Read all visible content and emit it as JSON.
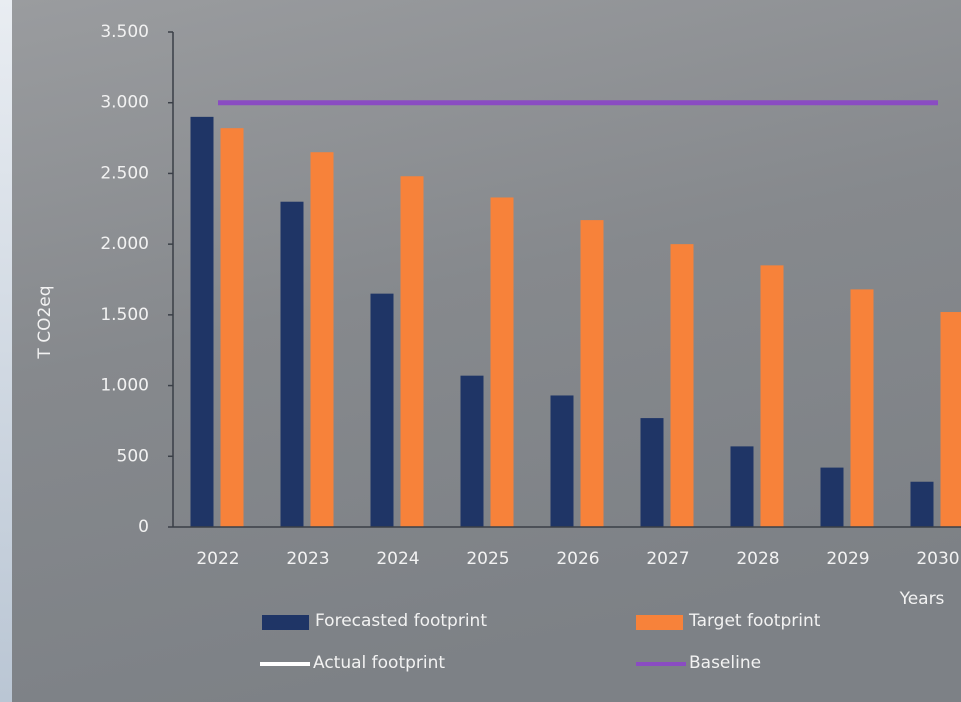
{
  "chart_data": {
    "type": "bar",
    "categories": [
      "2022",
      "2023",
      "2024",
      "2025",
      "2026",
      "2027",
      "2028",
      "2029",
      "2030"
    ],
    "y_label": "T  CO2eq",
    "x_label": "Years",
    "series": [
      {
        "name": "Forecasted footprint",
        "color": "#1f3566",
        "values": [
          2900,
          2300,
          1650,
          1070,
          930,
          770,
          570,
          420,
          320
        ]
      },
      {
        "name": "Target footprint",
        "color": "#f7823a",
        "values": [
          2820,
          2650,
          2480,
          2330,
          2170,
          2000,
          1850,
          1680,
          1520
        ]
      },
      {
        "name": "Actual footprint",
        "type": "line",
        "color": "#ffffff",
        "values": [
          null,
          null,
          null,
          null,
          null,
          null,
          null,
          null,
          null
        ]
      },
      {
        "name": "Baseline",
        "type": "line",
        "color": "#8a4cc2",
        "values": [
          3000,
          3000,
          3000,
          3000,
          3000,
          3000,
          3000,
          3000,
          3000
        ]
      }
    ],
    "ylim": [
      0,
      3500
    ],
    "yticks": [
      0,
      500,
      {
        "value": 1000,
        "label": "1.000"
      },
      {
        "value": 1500,
        "label": "1.500"
      },
      {
        "value": 2000,
        "label": "2.000"
      },
      {
        "value": 2500,
        "label": "2.500"
      },
      {
        "value": 3000,
        "label": "3.000"
      },
      {
        "value": 3500,
        "label": "3.500"
      }
    ]
  }
}
